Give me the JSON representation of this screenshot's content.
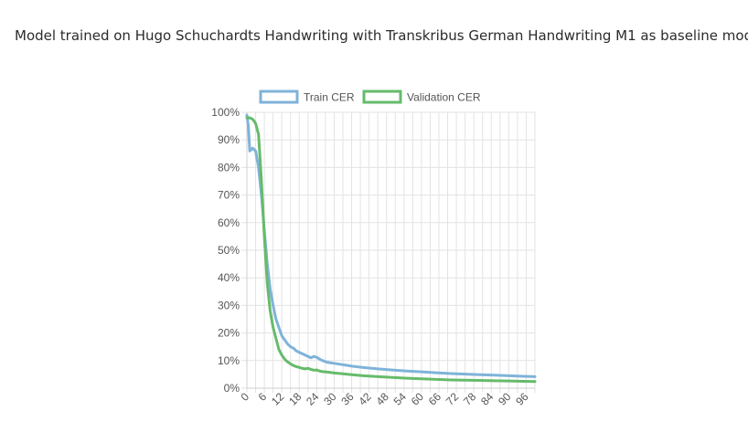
{
  "page": {
    "title": "Model trained on Hugo Schuchardts Handwriting with Transkribus German Handwriting M1 as baseline model"
  },
  "colors": {
    "train": "#7fb3d9",
    "validation": "#66bb6a",
    "grid": "#e3e3e3",
    "axis_text": "#555555"
  },
  "chart_data": {
    "type": "line",
    "title": "",
    "xlabel": "",
    "ylabel": "",
    "x_range": [
      0,
      99
    ],
    "ylim": [
      0,
      100
    ],
    "y_ticks": [
      "0%",
      "10%",
      "20%",
      "30%",
      "40%",
      "50%",
      "60%",
      "70%",
      "80%",
      "90%",
      "100%"
    ],
    "x_tick_labels": [
      "0",
      "6",
      "12",
      "18",
      "24",
      "30",
      "36",
      "42",
      "48",
      "54",
      "60",
      "66",
      "72",
      "78",
      "84",
      "90",
      "96"
    ],
    "grid": true,
    "legend_position": "top",
    "series": [
      {
        "name": "Train CER",
        "points": [
          [
            0,
            99
          ],
          [
            0.5,
            95
          ],
          [
            1,
            86
          ],
          [
            2,
            87
          ],
          [
            3,
            86
          ],
          [
            4,
            80
          ],
          [
            5,
            70
          ],
          [
            6,
            57
          ],
          [
            7,
            45
          ],
          [
            8,
            36
          ],
          [
            9,
            30
          ],
          [
            10,
            25
          ],
          [
            11,
            22
          ],
          [
            12,
            19
          ],
          [
            13,
            17.5
          ],
          [
            14,
            16
          ],
          [
            15,
            15
          ],
          [
            16,
            14.5
          ],
          [
            17,
            13.5
          ],
          [
            18,
            13
          ],
          [
            19,
            12.5
          ],
          [
            20,
            12
          ],
          [
            21,
            11.5
          ],
          [
            22,
            11
          ],
          [
            23,
            11.5
          ],
          [
            24,
            11.2
          ],
          [
            25,
            10.5
          ],
          [
            26,
            10
          ],
          [
            27,
            9.6
          ],
          [
            28,
            9.3
          ],
          [
            30,
            9
          ],
          [
            33,
            8.5
          ],
          [
            36,
            8
          ],
          [
            40,
            7.5
          ],
          [
            45,
            7
          ],
          [
            50,
            6.6
          ],
          [
            55,
            6.2
          ],
          [
            60,
            5.9
          ],
          [
            65,
            5.6
          ],
          [
            70,
            5.3
          ],
          [
            75,
            5.1
          ],
          [
            80,
            4.9
          ],
          [
            85,
            4.7
          ],
          [
            90,
            4.5
          ],
          [
            95,
            4.3
          ],
          [
            99,
            4.2
          ]
        ]
      },
      {
        "name": "Validation CER",
        "points": [
          [
            0,
            98
          ],
          [
            1,
            98
          ],
          [
            2,
            97.5
          ],
          [
            3,
            96
          ],
          [
            4,
            92
          ],
          [
            5,
            75
          ],
          [
            6,
            55
          ],
          [
            7,
            38
          ],
          [
            8,
            28
          ],
          [
            9,
            22
          ],
          [
            10,
            18
          ],
          [
            11,
            14
          ],
          [
            12,
            12
          ],
          [
            13,
            10.5
          ],
          [
            14,
            9.5
          ],
          [
            15,
            8.8
          ],
          [
            16,
            8.2
          ],
          [
            17,
            7.8
          ],
          [
            18,
            7.5
          ],
          [
            19,
            7.2
          ],
          [
            20,
            7
          ],
          [
            21,
            7.2
          ],
          [
            22,
            6.8
          ],
          [
            23,
            6.5
          ],
          [
            24,
            6.6
          ],
          [
            25,
            6.2
          ],
          [
            26,
            6
          ],
          [
            28,
            5.8
          ],
          [
            30,
            5.5
          ],
          [
            33,
            5.2
          ],
          [
            36,
            4.9
          ],
          [
            40,
            4.5
          ],
          [
            45,
            4.2
          ],
          [
            50,
            3.9
          ],
          [
            55,
            3.6
          ],
          [
            60,
            3.4
          ],
          [
            65,
            3.2
          ],
          [
            70,
            3
          ],
          [
            75,
            2.9
          ],
          [
            80,
            2.8
          ],
          [
            85,
            2.7
          ],
          [
            90,
            2.6
          ],
          [
            95,
            2.5
          ],
          [
            99,
            2.4
          ]
        ]
      }
    ]
  }
}
